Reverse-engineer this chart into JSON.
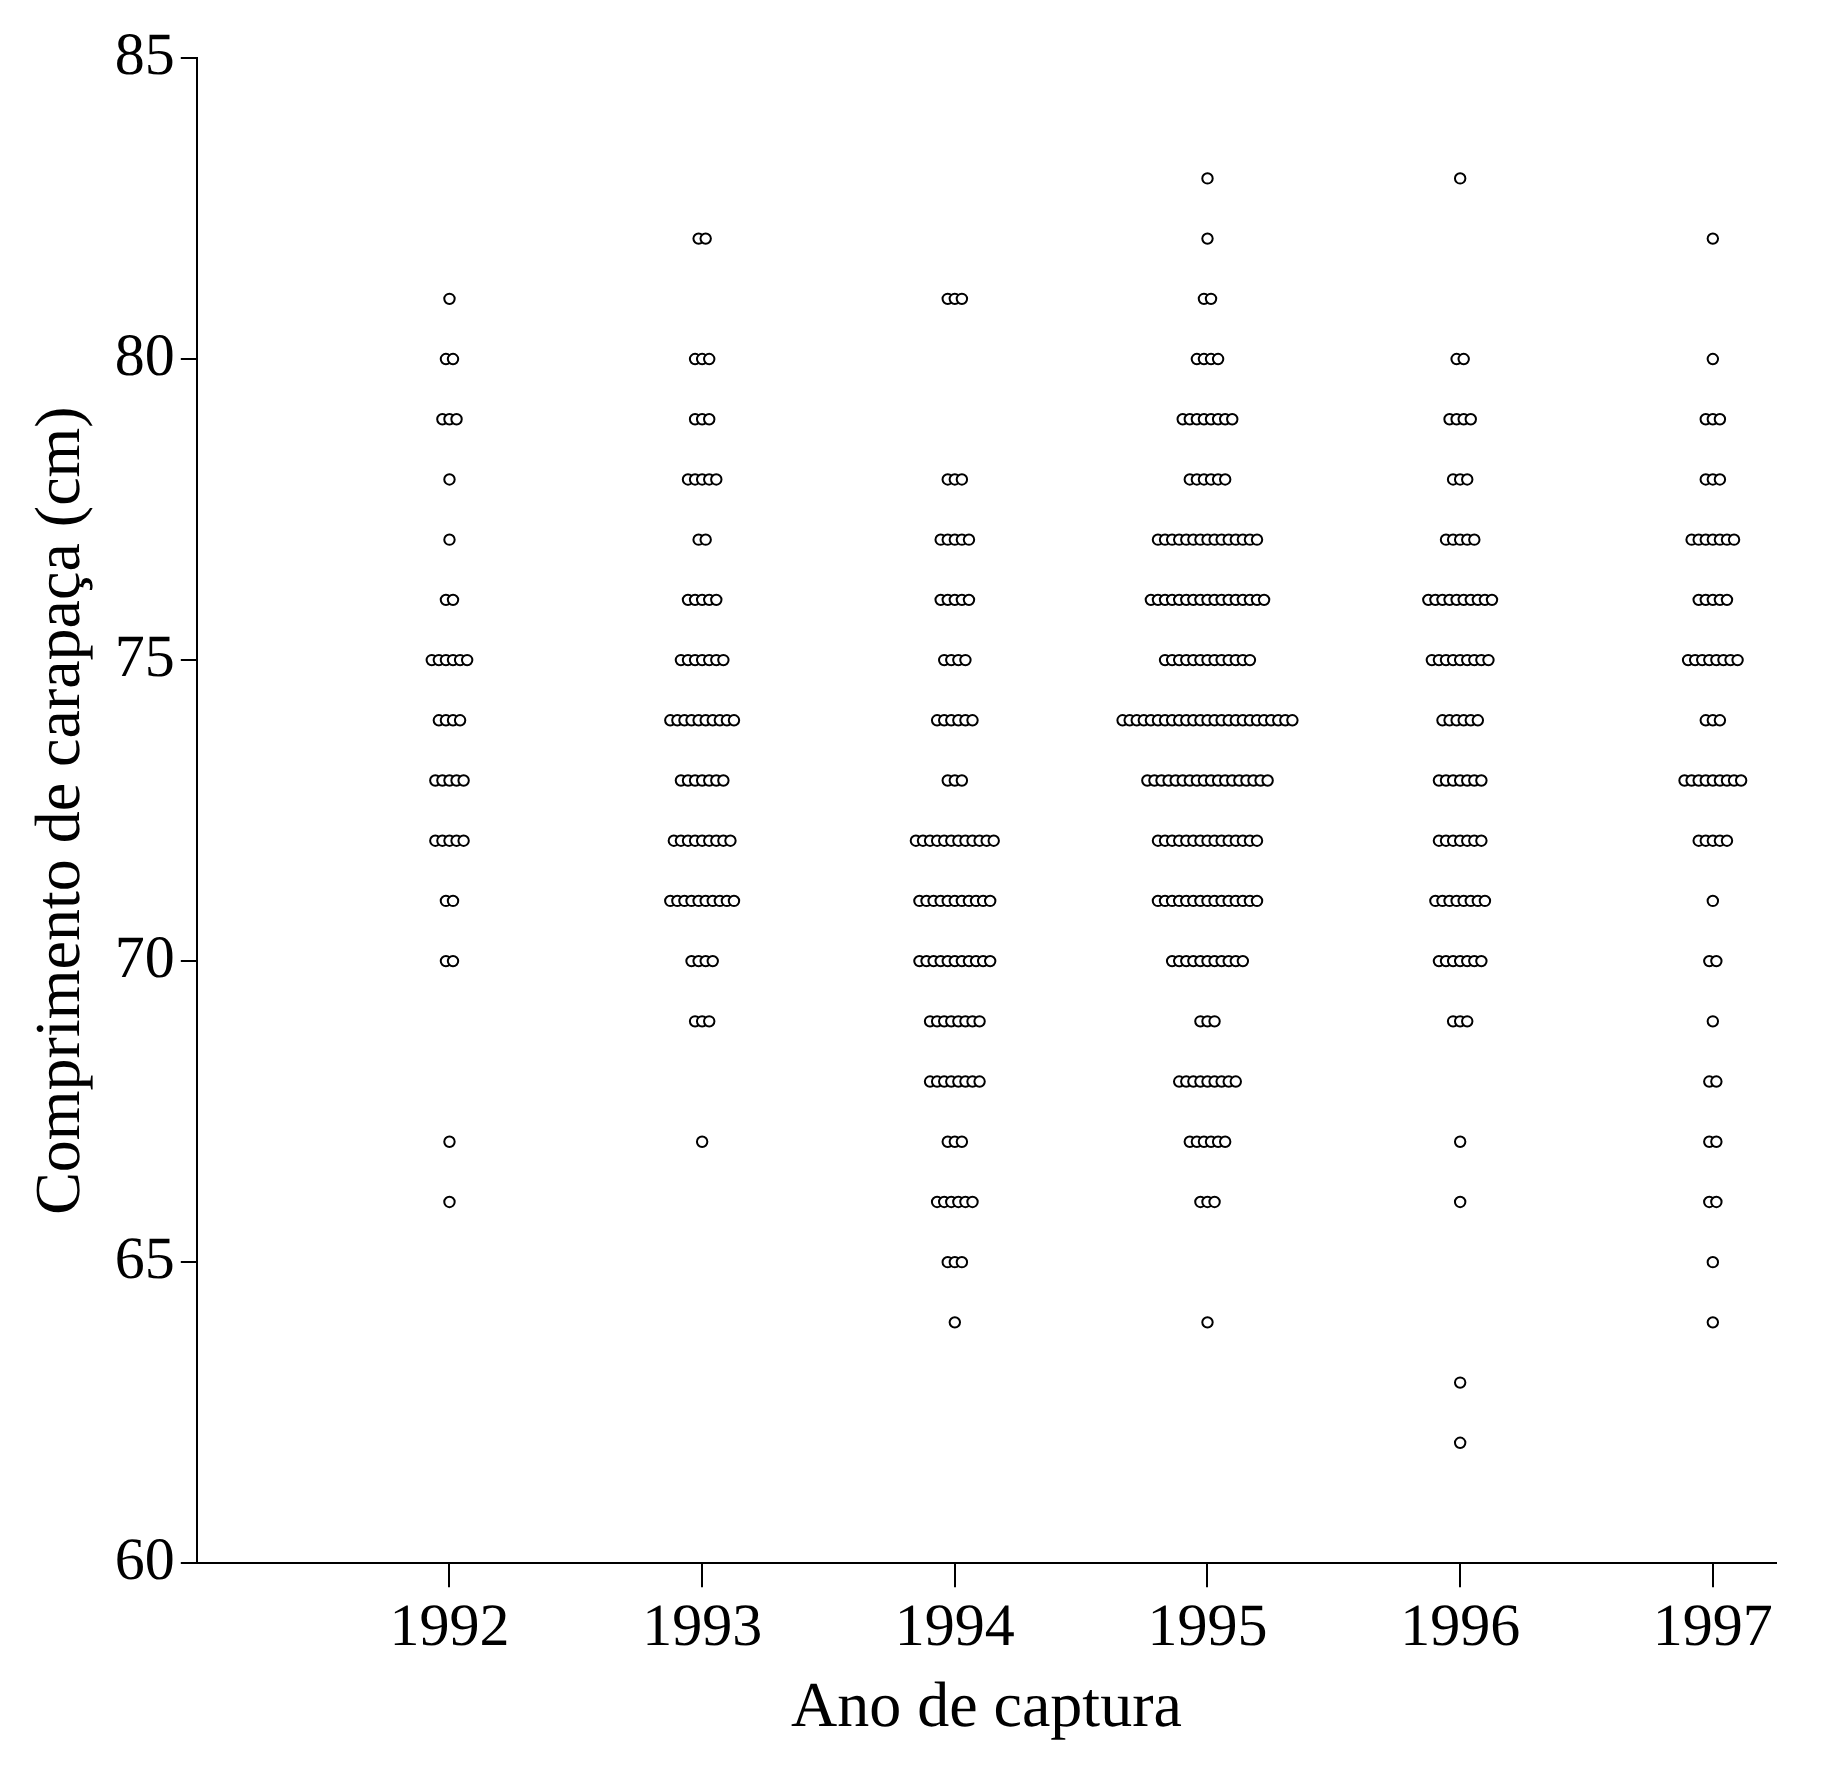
{
  "chart_data": {
    "type": "scatter",
    "xlabel": "Ano de captura",
    "ylabel": "Comprimento de carapaça (cm)",
    "xlim": [
      1991,
      1997.25
    ],
    "xticks": [
      1992,
      1993,
      1994,
      1995,
      1996,
      1997
    ],
    "ylim": [
      60,
      85
    ],
    "yticks": [
      60,
      65,
      70,
      75,
      80,
      85
    ],
    "grid": false,
    "legend": false,
    "marker": "circle",
    "series": [
      {
        "color": "#000000",
        "x": [
          1992,
          1991.986,
          1992.014,
          1991.972,
          1992,
          1992.028,
          1992,
          1992,
          1991.986,
          1992.014,
          1991.93,
          1991.958,
          1991.986,
          1992.014,
          1992.042,
          1992.07,
          1991.958,
          1991.986,
          1992.014,
          1992.042,
          1991.944,
          1991.972,
          1992,
          1992.028,
          1992.056,
          1991.944,
          1991.972,
          1992,
          1992.028,
          1992.056,
          1991.986,
          1992.014,
          1991.986,
          1992.014,
          1992,
          1992
        ],
        "values": [
          81,
          80,
          80,
          79,
          79,
          79,
          78,
          77,
          76,
          76,
          75,
          75,
          75,
          75,
          75,
          75,
          74,
          74,
          74,
          74,
          73,
          73,
          73,
          73,
          73,
          72,
          72,
          72,
          72,
          72,
          71,
          71,
          70,
          70,
          67,
          66
        ]
      },
      {
        "color": "#000000",
        "x": [
          1992.986,
          1993.014,
          1992.972,
          1993,
          1993.028,
          1992.972,
          1993,
          1993.028,
          1992.944,
          1992.972,
          1993,
          1993.028,
          1993.056,
          1992.986,
          1993.014,
          1992.944,
          1992.972,
          1993,
          1993.028,
          1993.056,
          1992.916,
          1992.944,
          1992.972,
          1993,
          1993.028,
          1993.056,
          1993.084,
          1992.874,
          1992.902,
          1992.93,
          1992.958,
          1992.986,
          1993.014,
          1993.042,
          1993.07,
          1993.098,
          1993.126,
          1992.916,
          1992.944,
          1992.972,
          1993,
          1993.028,
          1993.056,
          1993.084,
          1992.888,
          1992.916,
          1992.944,
          1992.972,
          1993,
          1993.028,
          1993.056,
          1993.084,
          1993.112,
          1992.874,
          1992.902,
          1992.93,
          1992.958,
          1992.986,
          1993.014,
          1993.042,
          1993.07,
          1993.098,
          1993.126,
          1992.958,
          1992.986,
          1993.014,
          1993.042,
          1992.972,
          1993,
          1993.028,
          1993
        ],
        "values": [
          82,
          82,
          80,
          80,
          80,
          79,
          79,
          79,
          78,
          78,
          78,
          78,
          78,
          77,
          77,
          76,
          76,
          76,
          76,
          76,
          75,
          75,
          75,
          75,
          75,
          75,
          75,
          74,
          74,
          74,
          74,
          74,
          74,
          74,
          74,
          74,
          74,
          73,
          73,
          73,
          73,
          73,
          73,
          73,
          72,
          72,
          72,
          72,
          72,
          72,
          72,
          72,
          72,
          71,
          71,
          71,
          71,
          71,
          71,
          71,
          71,
          71,
          71,
          70,
          70,
          70,
          70,
          69,
          69,
          69,
          67
        ]
      },
      {
        "color": "#000000",
        "x": [
          1993.972,
          1994,
          1994.028,
          1993.972,
          1994,
          1994.028,
          1993.944,
          1993.972,
          1994,
          1994.028,
          1994.056,
          1993.944,
          1993.972,
          1994,
          1994.028,
          1994.056,
          1993.958,
          1993.986,
          1994.014,
          1994.042,
          1993.93,
          1993.958,
          1993.986,
          1994.014,
          1994.042,
          1994.07,
          1993.972,
          1994,
          1994.028,
          1993.846,
          1993.874,
          1993.902,
          1993.93,
          1993.958,
          1993.986,
          1994.014,
          1994.042,
          1994.07,
          1994.098,
          1994.126,
          1994.154,
          1993.86,
          1993.888,
          1993.916,
          1993.944,
          1993.972,
          1994,
          1994.028,
          1994.056,
          1994.084,
          1994.112,
          1994.14,
          1993.86,
          1993.888,
          1993.916,
          1993.944,
          1993.972,
          1994,
          1994.028,
          1994.056,
          1994.084,
          1994.112,
          1994.14,
          1993.902,
          1993.93,
          1993.958,
          1993.986,
          1994.014,
          1994.042,
          1994.07,
          1994.098,
          1993.902,
          1993.93,
          1993.958,
          1993.986,
          1994.014,
          1994.042,
          1994.07,
          1994.098,
          1993.972,
          1994,
          1994.028,
          1993.93,
          1993.958,
          1993.986,
          1994.014,
          1994.042,
          1994.07,
          1993.972,
          1994,
          1994.028,
          1994
        ],
        "values": [
          81,
          81,
          81,
          78,
          78,
          78,
          77,
          77,
          77,
          77,
          77,
          76,
          76,
          76,
          76,
          76,
          75,
          75,
          75,
          75,
          74,
          74,
          74,
          74,
          74,
          74,
          73,
          73,
          73,
          72,
          72,
          72,
          72,
          72,
          72,
          72,
          72,
          72,
          72,
          72,
          72,
          71,
          71,
          71,
          71,
          71,
          71,
          71,
          71,
          71,
          71,
          71,
          70,
          70,
          70,
          70,
          70,
          70,
          70,
          70,
          70,
          70,
          70,
          69,
          69,
          69,
          69,
          69,
          69,
          69,
          69,
          68,
          68,
          68,
          68,
          68,
          68,
          68,
          68,
          67,
          67,
          67,
          66,
          66,
          66,
          66,
          66,
          66,
          65,
          65,
          65,
          64
        ]
      },
      {
        "color": "#000000",
        "x": [
          1995,
          1995,
          1994.986,
          1995.014,
          1994.958,
          1994.986,
          1995.014,
          1995.042,
          1994.902,
          1994.93,
          1994.958,
          1994.986,
          1995.014,
          1995.042,
          1995.07,
          1995.098,
          1994.93,
          1994.958,
          1994.986,
          1995.014,
          1995.042,
          1995.07,
          1994.804,
          1994.832,
          1994.86,
          1994.888,
          1994.916,
          1994.944,
          1994.972,
          1995,
          1995.028,
          1995.056,
          1995.084,
          1995.112,
          1995.14,
          1995.168,
          1995.196,
          1994.776,
          1994.804,
          1994.832,
          1994.86,
          1994.888,
          1994.916,
          1994.944,
          1994.972,
          1995,
          1995.028,
          1995.056,
          1995.084,
          1995.112,
          1995.14,
          1995.168,
          1995.196,
          1995.224,
          1994.832,
          1994.86,
          1994.888,
          1994.916,
          1994.944,
          1994.972,
          1995,
          1995.028,
          1995.056,
          1995.084,
          1995.112,
          1995.14,
          1995.168,
          1994.664,
          1994.692,
          1994.72,
          1994.748,
          1994.776,
          1994.804,
          1994.832,
          1994.86,
          1994.888,
          1994.916,
          1994.944,
          1994.972,
          1995,
          1995.028,
          1995.056,
          1995.084,
          1995.112,
          1995.14,
          1995.168,
          1995.196,
          1995.224,
          1995.252,
          1995.28,
          1995.308,
          1995.336,
          1994.762,
          1994.79,
          1994.818,
          1994.846,
          1994.874,
          1994.902,
          1994.93,
          1994.958,
          1994.986,
          1995.014,
          1995.042,
          1995.07,
          1995.098,
          1995.126,
          1995.154,
          1995.182,
          1995.21,
          1995.238,
          1994.804,
          1994.832,
          1994.86,
          1994.888,
          1994.916,
          1994.944,
          1994.972,
          1995,
          1995.028,
          1995.056,
          1995.084,
          1995.112,
          1995.14,
          1995.168,
          1995.196,
          1994.804,
          1994.832,
          1994.86,
          1994.888,
          1994.916,
          1994.944,
          1994.972,
          1995,
          1995.028,
          1995.056,
          1995.084,
          1995.112,
          1995.14,
          1995.168,
          1995.196,
          1994.86,
          1994.888,
          1994.916,
          1994.944,
          1994.972,
          1995,
          1995.028,
          1995.056,
          1995.084,
          1995.112,
          1995.14,
          1994.972,
          1995,
          1995.028,
          1994.888,
          1994.916,
          1994.944,
          1994.972,
          1995,
          1995.028,
          1995.056,
          1995.084,
          1995.112,
          1994.93,
          1994.958,
          1994.986,
          1995.014,
          1995.042,
          1995.07,
          1994.972,
          1995,
          1995.028,
          1995
        ],
        "values": [
          83,
          82,
          81,
          81,
          80,
          80,
          80,
          80,
          79,
          79,
          79,
          79,
          79,
          79,
          79,
          79,
          78,
          78,
          78,
          78,
          78,
          78,
          77,
          77,
          77,
          77,
          77,
          77,
          77,
          77,
          77,
          77,
          77,
          77,
          77,
          77,
          77,
          76,
          76,
          76,
          76,
          76,
          76,
          76,
          76,
          76,
          76,
          76,
          76,
          76,
          76,
          76,
          76,
          76,
          75,
          75,
          75,
          75,
          75,
          75,
          75,
          75,
          75,
          75,
          75,
          75,
          75,
          74,
          74,
          74,
          74,
          74,
          74,
          74,
          74,
          74,
          74,
          74,
          74,
          74,
          74,
          74,
          74,
          74,
          74,
          74,
          74,
          74,
          74,
          74,
          74,
          74,
          73,
          73,
          73,
          73,
          73,
          73,
          73,
          73,
          73,
          73,
          73,
          73,
          73,
          73,
          73,
          73,
          73,
          73,
          72,
          72,
          72,
          72,
          72,
          72,
          72,
          72,
          72,
          72,
          72,
          72,
          72,
          72,
          72,
          71,
          71,
          71,
          71,
          71,
          71,
          71,
          71,
          71,
          71,
          71,
          71,
          71,
          71,
          71,
          70,
          70,
          70,
          70,
          70,
          70,
          70,
          70,
          70,
          70,
          70,
          69,
          69,
          69,
          68,
          68,
          68,
          68,
          68,
          68,
          68,
          68,
          68,
          67,
          67,
          67,
          67,
          67,
          67,
          66,
          66,
          66,
          64
        ]
      },
      {
        "color": "#000000",
        "x": [
          1996,
          1995.986,
          1996.014,
          1995.958,
          1995.986,
          1996.014,
          1996.042,
          1995.972,
          1996,
          1996.028,
          1995.944,
          1995.972,
          1996,
          1996.028,
          1996.056,
          1995.874,
          1995.902,
          1995.93,
          1995.958,
          1995.986,
          1996.014,
          1996.042,
          1996.07,
          1996.098,
          1996.126,
          1995.888,
          1995.916,
          1995.944,
          1995.972,
          1996,
          1996.028,
          1996.056,
          1996.084,
          1996.112,
          1995.93,
          1995.958,
          1995.986,
          1996.014,
          1996.042,
          1996.07,
          1995.916,
          1995.944,
          1995.972,
          1996,
          1996.028,
          1996.056,
          1996.084,
          1995.916,
          1995.944,
          1995.972,
          1996,
          1996.028,
          1996.056,
          1996.084,
          1995.902,
          1995.93,
          1995.958,
          1995.986,
          1996.014,
          1996.042,
          1996.07,
          1996.098,
          1995.916,
          1995.944,
          1995.972,
          1996,
          1996.028,
          1996.056,
          1996.084,
          1995.972,
          1996,
          1996.028,
          1996,
          1996,
          1996,
          1996
        ],
        "values": [
          83,
          80,
          80,
          79,
          79,
          79,
          79,
          78,
          78,
          78,
          77,
          77,
          77,
          77,
          77,
          76,
          76,
          76,
          76,
          76,
          76,
          76,
          76,
          76,
          76,
          75,
          75,
          75,
          75,
          75,
          75,
          75,
          75,
          75,
          74,
          74,
          74,
          74,
          74,
          74,
          73,
          73,
          73,
          73,
          73,
          73,
          73,
          72,
          72,
          72,
          72,
          72,
          72,
          72,
          71,
          71,
          71,
          71,
          71,
          71,
          71,
          71,
          70,
          70,
          70,
          70,
          70,
          70,
          70,
          69,
          69,
          69,
          67,
          66,
          63,
          62
        ]
      },
      {
        "color": "#000000",
        "x": [
          1997,
          1997,
          1996.972,
          1997,
          1997.028,
          1996.972,
          1997,
          1997.028,
          1996.916,
          1996.944,
          1996.972,
          1997,
          1997.028,
          1997.056,
          1997.084,
          1996.944,
          1996.972,
          1997,
          1997.028,
          1997.056,
          1996.902,
          1996.93,
          1996.958,
          1996.986,
          1997.014,
          1997.042,
          1997.07,
          1997.098,
          1996.972,
          1997,
          1997.028,
          1996.888,
          1996.916,
          1996.944,
          1996.972,
          1997,
          1997.028,
          1997.056,
          1997.084,
          1997.112,
          1996.944,
          1996.972,
          1997,
          1997.028,
          1997.056,
          1997,
          1996.986,
          1997.014,
          1997,
          1996.986,
          1997.014,
          1996.986,
          1997.014,
          1996.986,
          1997.014,
          1997,
          1997
        ],
        "values": [
          82,
          80,
          79,
          79,
          79,
          78,
          78,
          78,
          77,
          77,
          77,
          77,
          77,
          77,
          77,
          76,
          76,
          76,
          76,
          76,
          75,
          75,
          75,
          75,
          75,
          75,
          75,
          75,
          74,
          74,
          74,
          73,
          73,
          73,
          73,
          73,
          73,
          73,
          73,
          73,
          72,
          72,
          72,
          72,
          72,
          71,
          70,
          70,
          69,
          68,
          68,
          67,
          67,
          66,
          66,
          65,
          64
        ]
      }
    ]
  }
}
